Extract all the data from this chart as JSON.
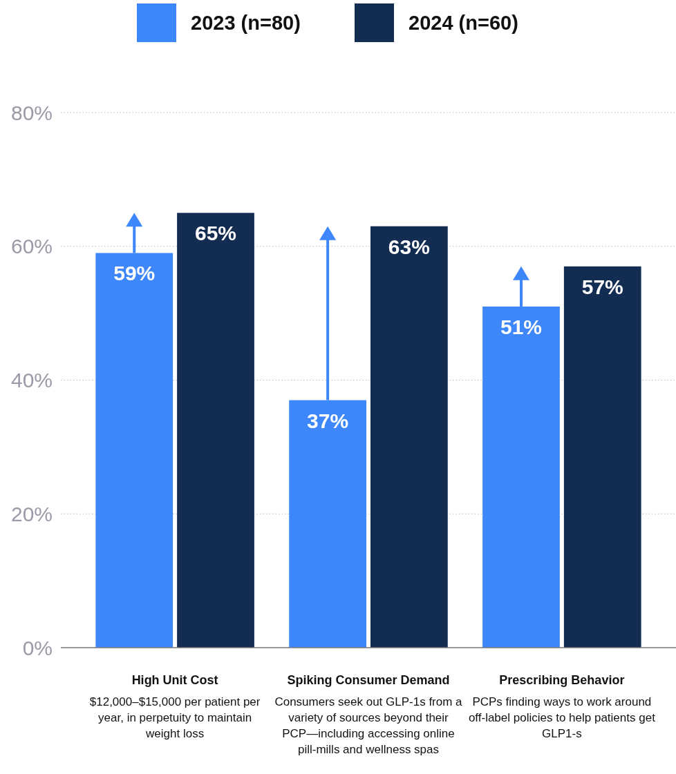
{
  "chart_data": {
    "type": "bar",
    "categories": [
      "High Unit Cost",
      "Spiking Consumer Demand",
      "Prescribing Behavior"
    ],
    "series": [
      {
        "name": "2023 (n=80)",
        "color": "#3d87fb",
        "values": [
          59,
          37,
          51
        ],
        "value_labels": [
          "59%",
          "37%",
          "51%"
        ]
      },
      {
        "name": "2024 (n=60)",
        "color": "#132d52",
        "values": [
          65,
          63,
          57
        ],
        "value_labels": [
          "65%",
          "63%",
          "57%"
        ]
      }
    ],
    "ylim": [
      0,
      80
    ],
    "yticks": [
      {
        "value": 0,
        "label": "0%"
      },
      {
        "value": 20,
        "label": "20%"
      },
      {
        "value": 40,
        "label": "40%"
      },
      {
        "value": 60,
        "label": "60%"
      },
      {
        "value": 80,
        "label": "80%"
      }
    ],
    "grid": "y",
    "legend": "top",
    "annotations": [
      "$12,000–$15,000 per patient per year, in perpetuity to maintain weight loss",
      "Consumers seek out GLP-1s from a variety of sources beyond their PCP—including accessing online pill-mills and wellness spas",
      "PCPs finding ways to work around off-label policies to help patients get GLP1-s"
    ]
  }
}
